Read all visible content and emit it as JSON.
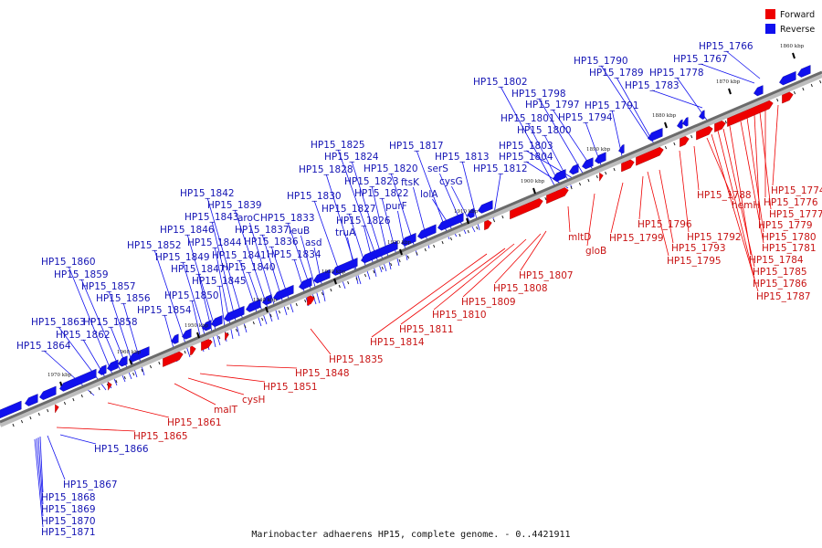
{
  "caption": "Marinobacter adhaerens HP15, complete genome. - 0..4421911",
  "legend": [
    {
      "label": "Forward",
      "color": "#ee0000"
    },
    {
      "label": "Reverse",
      "color": "#1010ee"
    }
  ],
  "scale_labels": [
    "1860 kbp",
    "1870 kbp",
    "1880 kbp",
    "1890 kbp",
    "1900 kbp",
    "1910 kbp",
    "1920 kbp",
    "1930 kbp",
    "1940 kbp",
    "1950 kbp",
    "1960 kbp",
    "1970 kbp"
  ],
  "reverse_labels": [
    "HP15_1766",
    "HP15_1767",
    "HP15_1778",
    "HP15_1783",
    "HP15_1789",
    "HP15_1790",
    "HP15_1791",
    "HP15_1794",
    "HP15_1797",
    "HP15_1798",
    "HP15_1800",
    "HP15_1801",
    "HP15_1802",
    "HP15_1803",
    "HP15_1804",
    "HP15_1812",
    "HP15_1813",
    "HP15_1817",
    "HP15_1820",
    "HP15_1822",
    "HP15_1823",
    "HP15_1824",
    "HP15_1825",
    "HP15_1826",
    "HP15_1827",
    "HP15_1828",
    "HP15_1830",
    "HP15_1833",
    "HP15_1834",
    "HP15_1836",
    "HP15_1837",
    "HP15_1839",
    "HP15_1840",
    "HP15_1841",
    "HP15_1842",
    "HP15_1843",
    "HP15_1844",
    "HP15_1845",
    "HP15_1846",
    "HP15_1847",
    "HP15_1849",
    "HP15_1850",
    "HP15_1852",
    "HP15_1854",
    "HP15_1856",
    "HP15_1857",
    "HP15_1858",
    "HP15_1859",
    "HP15_1860",
    "HP15_1862",
    "HP15_1863",
    "HP15_1864",
    "HP15_1866",
    "HP15_1867",
    "HP15_1868",
    "HP15_1869",
    "HP15_1870",
    "HP15_1871",
    "serS",
    "cysG",
    "ftsK",
    "lolA",
    "purF",
    "truA",
    "asd",
    "leuB",
    "aroC"
  ],
  "forward_labels": [
    "HP15_1774",
    "HP15_1776",
    "HP15_1777",
    "HP15_1779",
    "HP15_1780",
    "HP15_1781",
    "HP15_1784",
    "HP15_1785",
    "HP15_1786",
    "HP15_1787",
    "HP15_1788",
    "hemH",
    "HP15_1792",
    "HP15_1793",
    "HP15_1795",
    "HP15_1796",
    "HP15_1799",
    "gloB",
    "mltD",
    "HP15_1807",
    "HP15_1808",
    "HP15_1809",
    "HP15_1810",
    "HP15_1811",
    "HP15_1814",
    "HP15_1835",
    "HP15_1848",
    "HP15_1851",
    "cysH",
    "malT",
    "HP15_1861",
    "HP15_1865"
  ]
}
